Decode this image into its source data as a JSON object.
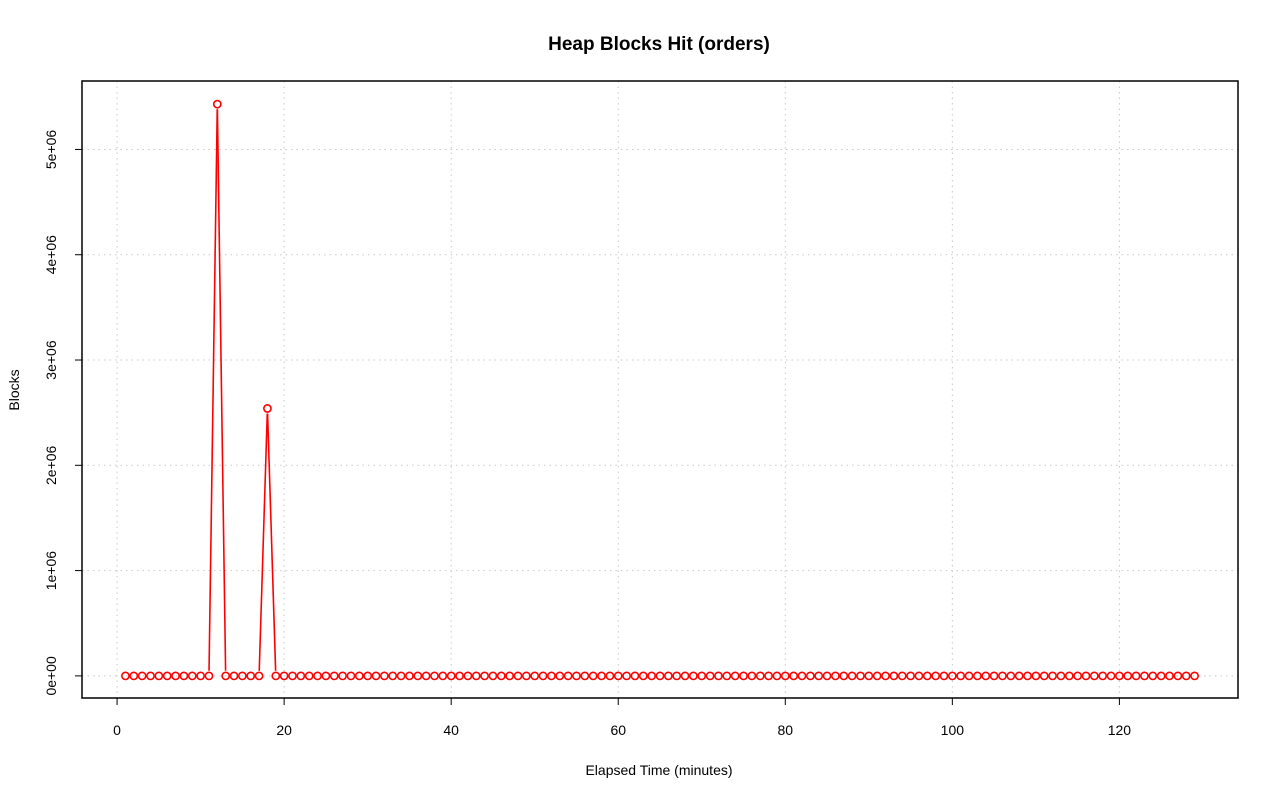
{
  "chart_data": {
    "type": "line",
    "title": "Heap Blocks Hit (orders)",
    "xlabel": "Elapsed Time (minutes)",
    "ylabel": "Blocks",
    "xlim": [
      -4.2,
      134.2
    ],
    "ylim": [
      -210000,
      5650000
    ],
    "x_ticks": [
      0,
      20,
      40,
      60,
      80,
      100,
      120
    ],
    "x_tick_labels": [
      "0",
      "20",
      "40",
      "60",
      "80",
      "100",
      "120"
    ],
    "y_ticks": [
      0,
      1000000,
      2000000,
      3000000,
      4000000,
      5000000
    ],
    "y_tick_labels": [
      "0e+00",
      "1e+06",
      "2e+06",
      "3e+06",
      "4e+06",
      "5e+06"
    ],
    "grid": true,
    "colors": {
      "series": "#ff0000",
      "grid": "#c8c8c8",
      "frame": "#000000"
    },
    "x_start": 1,
    "x_end": 129,
    "x_step": 1,
    "baseline_value": 0,
    "nonzero_points": [
      {
        "x": 12,
        "y": 5430000
      },
      {
        "x": 18,
        "y": 2540000
      }
    ]
  }
}
